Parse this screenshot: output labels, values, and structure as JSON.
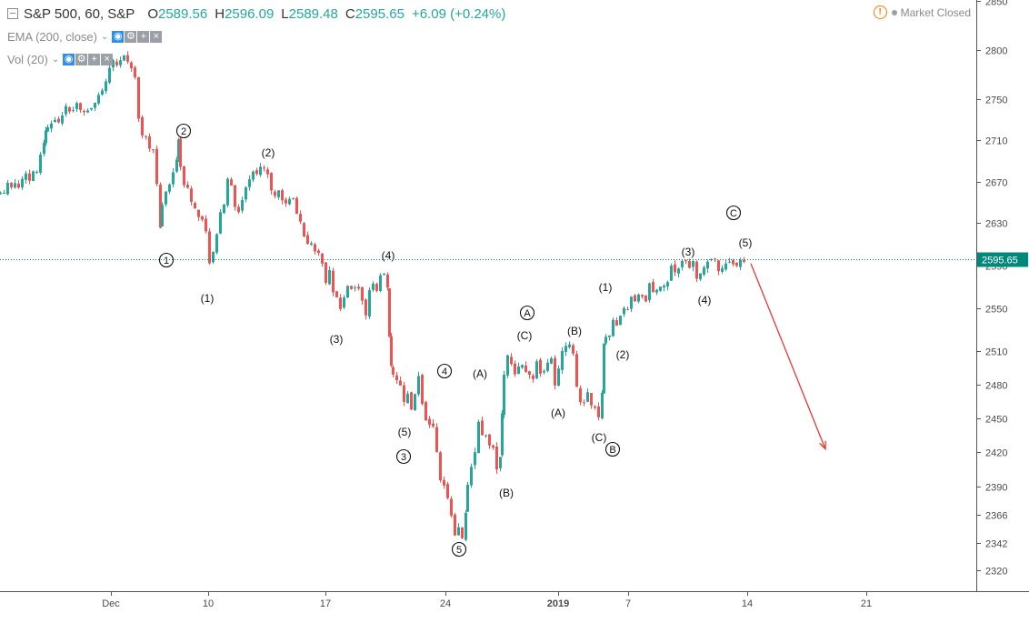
{
  "header": {
    "symbol": "S&P 500, 60, S&P",
    "open_key": "O",
    "open": "2589.56",
    "high_key": "H",
    "high": "2596.09",
    "low_key": "L",
    "low": "2589.48",
    "close_key": "C",
    "close": "2595.65",
    "change": "+6.09 (+0.24%)"
  },
  "indicators": [
    {
      "label": "EMA (200, close)"
    },
    {
      "label": "Vol (20)"
    }
  ],
  "market_status": "Market Closed",
  "colors": {
    "up": "#26a69a",
    "down": "#ef5350",
    "price_line": "#00897b",
    "arrow": "#e53935",
    "axis": "#4a4a4a"
  },
  "chart_data": {
    "type": "candlestick",
    "y_ticks": [
      2850,
      2800,
      2750,
      2710,
      2670,
      2630,
      2590,
      2550,
      2510,
      2480,
      2450,
      2420,
      2390,
      2366,
      2342,
      2320
    ],
    "x_labels": [
      "Dec",
      "10",
      "17",
      "24",
      "2019",
      "7",
      "14",
      "21"
    ],
    "last_price": 2595.65,
    "last_price_label": "2595.65",
    "path": [
      [
        0,
        2659
      ],
      [
        4,
        2662
      ],
      [
        8,
        2661
      ],
      [
        12,
        2670
      ],
      [
        16,
        2664
      ],
      [
        20,
        2669
      ],
      [
        24,
        2666
      ],
      [
        28,
        2674
      ],
      [
        32,
        2676
      ],
      [
        36,
        2673
      ],
      [
        40,
        2680
      ],
      [
        44,
        2681
      ],
      [
        48,
        2695
      ],
      [
        50,
        2710
      ],
      [
        52,
        2722
      ],
      [
        56,
        2721
      ],
      [
        60,
        2726
      ],
      [
        64,
        2732
      ],
      [
        68,
        2730
      ],
      [
        72,
        2733
      ],
      [
        76,
        2741
      ],
      [
        80,
        2736
      ],
      [
        84,
        2741
      ],
      [
        88,
        2747
      ],
      [
        92,
        2741
      ],
      [
        96,
        2737
      ],
      [
        100,
        2737
      ],
      [
        104,
        2741
      ],
      [
        108,
        2746
      ],
      [
        112,
        2755
      ],
      [
        116,
        2758
      ],
      [
        120,
        2766
      ],
      [
        124,
        2783
      ],
      [
        128,
        2791
      ],
      [
        132,
        2786
      ],
      [
        136,
        2790
      ],
      [
        140,
        2793
      ],
      [
        144,
        2790
      ],
      [
        148,
        2782
      ],
      [
        152,
        2774
      ],
      [
        156,
        2732
      ],
      [
        160,
        2713
      ],
      [
        164,
        2712
      ],
      [
        168,
        2702
      ],
      [
        172,
        2701
      ],
      [
        176,
        2667
      ],
      [
        178,
        2627
      ],
      [
        182,
        2650
      ],
      [
        186,
        2662
      ],
      [
        190,
        2668
      ],
      [
        194,
        2681
      ],
      [
        196,
        2693
      ],
      [
        198,
        2711
      ],
      [
        202,
        2685
      ],
      [
        206,
        2668
      ],
      [
        210,
        2666
      ],
      [
        214,
        2651
      ],
      [
        218,
        2647
      ],
      [
        222,
        2638
      ],
      [
        226,
        2636
      ],
      [
        230,
        2624
      ],
      [
        234,
        2594
      ],
      [
        238,
        2601
      ],
      [
        242,
        2620
      ],
      [
        246,
        2640
      ],
      [
        250,
        2648
      ],
      [
        254,
        2673
      ],
      [
        258,
        2666
      ],
      [
        262,
        2645
      ],
      [
        266,
        2639
      ],
      [
        270,
        2653
      ],
      [
        274,
        2667
      ],
      [
        278,
        2673
      ],
      [
        282,
        2678
      ],
      [
        286,
        2679
      ],
      [
        290,
        2684
      ],
      [
        294,
        2682
      ],
      [
        298,
        2675
      ],
      [
        302,
        2663
      ],
      [
        306,
        2657
      ],
      [
        310,
        2660
      ],
      [
        314,
        2650
      ],
      [
        318,
        2648
      ],
      [
        322,
        2653
      ],
      [
        326,
        2654
      ],
      [
        330,
        2640
      ],
      [
        334,
        2630
      ],
      [
        338,
        2619
      ],
      [
        342,
        2613
      ],
      [
        346,
        2612
      ],
      [
        350,
        2605
      ],
      [
        354,
        2603
      ],
      [
        358,
        2591
      ],
      [
        362,
        2572
      ],
      [
        366,
        2584
      ],
      [
        370,
        2565
      ],
      [
        374,
        2558
      ],
      [
        378,
        2550
      ],
      [
        382,
        2560
      ],
      [
        386,
        2573
      ],
      [
        390,
        2568
      ],
      [
        394,
        2570
      ],
      [
        398,
        2566
      ],
      [
        402,
        2555
      ],
      [
        406,
        2542
      ],
      [
        410,
        2568
      ],
      [
        414,
        2574
      ],
      [
        418,
        2567
      ],
      [
        422,
        2580
      ],
      [
        426,
        2583
      ],
      [
        428,
        2568
      ],
      [
        430,
        2522
      ],
      [
        432,
        2496
      ],
      [
        436,
        2488
      ],
      [
        440,
        2485
      ],
      [
        444,
        2477
      ],
      [
        448,
        2463
      ],
      [
        452,
        2470
      ],
      [
        456,
        2456
      ],
      [
        460,
        2470
      ],
      [
        464,
        2489
      ],
      [
        468,
        2465
      ],
      [
        472,
        2449
      ],
      [
        476,
        2442
      ],
      [
        480,
        2444
      ],
      [
        484,
        2418
      ],
      [
        488,
        2394
      ],
      [
        492,
        2393
      ],
      [
        496,
        2380
      ],
      [
        500,
        2366
      ],
      [
        504,
        2350
      ],
      [
        508,
        2355
      ],
      [
        512,
        2347
      ],
      [
        514,
        2369
      ],
      [
        518,
        2390
      ],
      [
        522,
        2408
      ],
      [
        526,
        2418
      ],
      [
        530,
        2445
      ],
      [
        534,
        2437
      ],
      [
        538,
        2433
      ],
      [
        542,
        2426
      ],
      [
        546,
        2425
      ],
      [
        550,
        2403
      ],
      [
        552,
        2417
      ],
      [
        554,
        2454
      ],
      [
        558,
        2489
      ],
      [
        562,
        2504
      ],
      [
        566,
        2498
      ],
      [
        570,
        2490
      ],
      [
        574,
        2498
      ],
      [
        578,
        2500
      ],
      [
        582,
        2493
      ],
      [
        586,
        2489
      ],
      [
        590,
        2485
      ],
      [
        594,
        2500
      ],
      [
        598,
        2489
      ],
      [
        602,
        2491
      ],
      [
        606,
        2500
      ],
      [
        610,
        2504
      ],
      [
        614,
        2480
      ],
      [
        618,
        2496
      ],
      [
        622,
        2511
      ],
      [
        626,
        2517
      ],
      [
        630,
        2516
      ],
      [
        634,
        2510
      ],
      [
        638,
        2478
      ],
      [
        642,
        2466
      ],
      [
        646,
        2465
      ],
      [
        650,
        2474
      ],
      [
        654,
        2460
      ],
      [
        658,
        2458
      ],
      [
        662,
        2452
      ],
      [
        664,
        2475
      ],
      [
        666,
        2519
      ],
      [
        670,
        2521
      ],
      [
        674,
        2524
      ],
      [
        678,
        2537
      ],
      [
        682,
        2536
      ],
      [
        686,
        2545
      ],
      [
        690,
        2548
      ],
      [
        694,
        2550
      ],
      [
        698,
        2562
      ],
      [
        702,
        2555
      ],
      [
        706,
        2565
      ],
      [
        710,
        2560
      ],
      [
        714,
        2558
      ],
      [
        718,
        2574
      ],
      [
        722,
        2567
      ],
      [
        726,
        2566
      ],
      [
        730,
        2569
      ],
      [
        734,
        2573
      ],
      [
        738,
        2576
      ],
      [
        742,
        2588
      ],
      [
        746,
        2584
      ],
      [
        750,
        2589
      ],
      [
        754,
        2595
      ],
      [
        758,
        2593
      ],
      [
        762,
        2589
      ],
      [
        766,
        2592
      ],
      [
        770,
        2577
      ],
      [
        774,
        2584
      ],
      [
        778,
        2589
      ],
      [
        782,
        2592
      ],
      [
        786,
        2595
      ],
      [
        790,
        2598
      ],
      [
        794,
        2587
      ],
      [
        798,
        2588
      ],
      [
        802,
        2590
      ],
      [
        806,
        2592
      ],
      [
        810,
        2589
      ],
      [
        814,
        2590
      ],
      [
        818,
        2593
      ],
      [
        822,
        2596
      ]
    ],
    "waves": [
      {
        "label": "1",
        "x": 183,
        "y": 286,
        "circled": true
      },
      {
        "label": "2",
        "x": 202,
        "y": 144,
        "circled": true
      },
      {
        "label": "(1)",
        "x": 228,
        "y": 328,
        "circled": false
      },
      {
        "label": "(2)",
        "x": 295,
        "y": 168,
        "circled": false
      },
      {
        "label": "(3)",
        "x": 370,
        "y": 373,
        "circled": false
      },
      {
        "label": "(4)",
        "x": 427,
        "y": 281,
        "circled": false
      },
      {
        "label": "4",
        "x": 489,
        "y": 408,
        "circled": true
      },
      {
        "label": "(5)",
        "x": 445,
        "y": 475,
        "circled": false
      },
      {
        "label": "3",
        "x": 444,
        "y": 502,
        "circled": true
      },
      {
        "label": "5",
        "x": 505,
        "y": 604,
        "circled": true
      },
      {
        "label": "(A)",
        "x": 528,
        "y": 411,
        "circled": false
      },
      {
        "label": "(B)",
        "x": 557,
        "y": 542,
        "circled": false
      },
      {
        "label": "A",
        "x": 580,
        "y": 344,
        "circled": true
      },
      {
        "label": "(C)",
        "x": 577,
        "y": 369,
        "circled": false
      },
      {
        "label": "(B)",
        "x": 632,
        "y": 364,
        "circled": false
      },
      {
        "label": "(A)",
        "x": 614,
        "y": 454,
        "circled": false
      },
      {
        "label": "(C)",
        "x": 659,
        "y": 481,
        "circled": false
      },
      {
        "label": "B",
        "x": 674,
        "y": 494,
        "circled": true
      },
      {
        "label": "(1)",
        "x": 666,
        "y": 316,
        "circled": false
      },
      {
        "label": "(2)",
        "x": 685,
        "y": 390,
        "circled": false
      },
      {
        "label": "(3)",
        "x": 757,
        "y": 277,
        "circled": false
      },
      {
        "label": "(4)",
        "x": 775,
        "y": 330,
        "circled": false
      },
      {
        "label": "C",
        "x": 807,
        "y": 234,
        "circled": true
      },
      {
        "label": "(5)",
        "x": 820,
        "y": 267,
        "circled": false
      }
    ],
    "projection": {
      "from": [
        826,
        2592
      ],
      "to": [
        908,
        2423
      ]
    }
  }
}
